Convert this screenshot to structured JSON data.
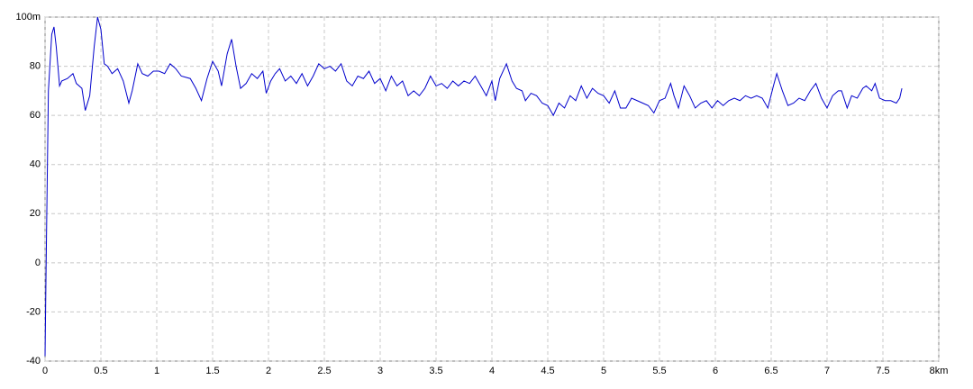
{
  "chart_data": {
    "type": "line",
    "color": "#0000cc",
    "grid": true,
    "xlim": [
      0,
      8
    ],
    "ylim": [
      -40,
      100
    ],
    "xticks": [
      0,
      0.5,
      1,
      1.5,
      2,
      2.5,
      3,
      3.5,
      4,
      4.5,
      5,
      5.5,
      6,
      6.5,
      7,
      7.5,
      {
        "value": 8,
        "label": "8km"
      }
    ],
    "yticks": [
      -40,
      -20,
      0,
      20,
      40,
      60,
      80,
      {
        "value": 100,
        "label": "100m"
      }
    ],
    "x": [
      0,
      0.01,
      0.03,
      0.06,
      0.08,
      0.1,
      0.13,
      0.15,
      0.2,
      0.25,
      0.28,
      0.33,
      0.36,
      0.4,
      0.44,
      0.47,
      0.5,
      0.53,
      0.56,
      0.6,
      0.65,
      0.7,
      0.75,
      0.78,
      0.83,
      0.87,
      0.92,
      0.97,
      1.02,
      1.07,
      1.12,
      1.17,
      1.22,
      1.3,
      1.35,
      1.4,
      1.45,
      1.5,
      1.55,
      1.58,
      1.63,
      1.67,
      1.71,
      1.75,
      1.8,
      1.85,
      1.9,
      1.95,
      1.98,
      2.02,
      2.06,
      2.1,
      2.15,
      2.2,
      2.25,
      2.3,
      2.35,
      2.4,
      2.45,
      2.5,
      2.55,
      2.6,
      2.65,
      2.7,
      2.75,
      2.8,
      2.85,
      2.9,
      2.95,
      3.0,
      3.05,
      3.1,
      3.15,
      3.2,
      3.25,
      3.3,
      3.35,
      3.4,
      3.45,
      3.5,
      3.55,
      3.6,
      3.65,
      3.7,
      3.75,
      3.8,
      3.85,
      3.9,
      3.95,
      4.0,
      4.03,
      4.07,
      4.13,
      4.18,
      4.22,
      4.27,
      4.3,
      4.35,
      4.4,
      4.45,
      4.5,
      4.55,
      4.6,
      4.65,
      4.7,
      4.75,
      4.8,
      4.85,
      4.9,
      4.95,
      5.0,
      5.05,
      5.1,
      5.15,
      5.2,
      5.25,
      5.3,
      5.35,
      5.4,
      5.45,
      5.5,
      5.55,
      5.6,
      5.63,
      5.67,
      5.72,
      5.77,
      5.82,
      5.87,
      5.92,
      5.97,
      6.02,
      6.07,
      6.12,
      6.17,
      6.22,
      6.27,
      6.32,
      6.37,
      6.42,
      6.47,
      6.52,
      6.55,
      6.6,
      6.65,
      6.7,
      6.75,
      6.8,
      6.85,
      6.9,
      6.95,
      7.0,
      7.05,
      7.1,
      7.13,
      7.18,
      7.22,
      7.27,
      7.32,
      7.35,
      7.4,
      7.43,
      7.47,
      7.52,
      7.57,
      7.62,
      7.65,
      7.67
    ],
    "values": [
      -38,
      0,
      70,
      93,
      96,
      88,
      72,
      74,
      75,
      77,
      73,
      71,
      62,
      68,
      88,
      100,
      95,
      81,
      80,
      77,
      79,
      74,
      65,
      70,
      81,
      77,
      76,
      78,
      78,
      77,
      81,
      79,
      76,
      75,
      71,
      66,
      75,
      82,
      78,
      72,
      85,
      91,
      80,
      71,
      73,
      77,
      75,
      78,
      69,
      74,
      77,
      79,
      74,
      76,
      73,
      77,
      72,
      76,
      81,
      79,
      80,
      78,
      81,
      74,
      72,
      76,
      75,
      78,
      73,
      75,
      70,
      76,
      72,
      74,
      68,
      70,
      68,
      71,
      76,
      72,
      73,
      71,
      74,
      72,
      74,
      73,
      76,
      72,
      68,
      74,
      66,
      75,
      81,
      74,
      71,
      70,
      66,
      69,
      68,
      65,
      64,
      60,
      65,
      63,
      68,
      66,
      72,
      67,
      71,
      69,
      68,
      65,
      70,
      63,
      63,
      67,
      66,
      65,
      64,
      61,
      66,
      67,
      73,
      68,
      63,
      72,
      68,
      63,
      65,
      66,
      63,
      66,
      64,
      66,
      67,
      66,
      68,
      67,
      68,
      67,
      63,
      72,
      77,
      70,
      64,
      65,
      67,
      66,
      70,
      73,
      67,
      63,
      68,
      70,
      70,
      63,
      68,
      67,
      71,
      72,
      70,
      73,
      67,
      66,
      66,
      65,
      67,
      71
    ]
  }
}
